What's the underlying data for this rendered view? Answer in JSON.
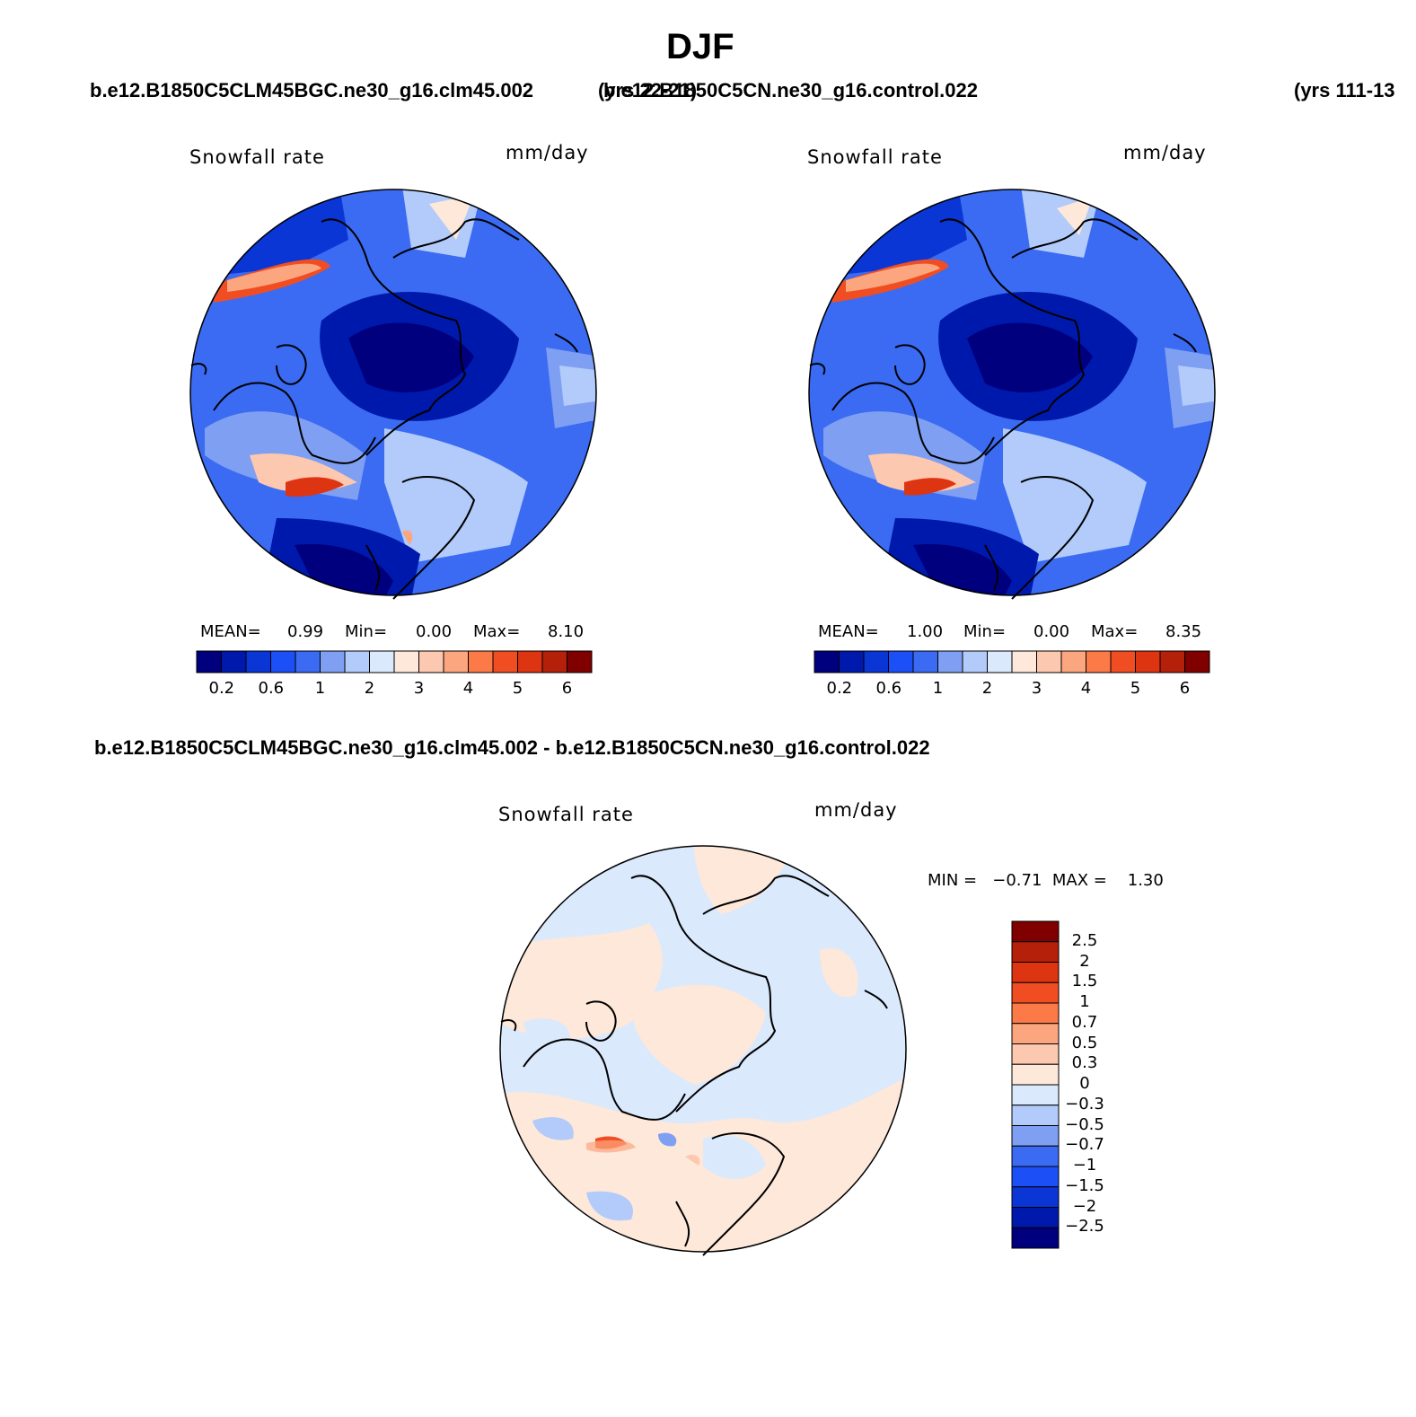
{
  "title": "DJF",
  "header": {
    "case_left": "b.e12.B1850C5CLM45BGC.ne30_g16.clm45.002",
    "years_left": "(yrs 22-21)",
    "case_right": "b.e12.B1850C5CN.ne30_g16.control.022",
    "years_right": "(yrs 111-13"
  },
  "panels": [
    {
      "variable": "Snowfall rate",
      "units": "mm/day",
      "stats": {
        "mean_label": "MEAN=",
        "mean": "0.99",
        "min_label": "Min=",
        "min": "0.00",
        "max_label": "Max=",
        "max": "8.10"
      }
    },
    {
      "variable": "Snowfall rate",
      "units": "mm/day",
      "stats": {
        "mean_label": "MEAN=",
        "mean": "1.00",
        "min_label": "Min=",
        "min": "0.00",
        "max_label": "Max=",
        "max": "8.35"
      }
    }
  ],
  "diff": {
    "title": "b.e12.B1850C5CLM45BGC.ne30_g16.clm45.002 - b.e12.B1850C5CN.ne30_g16.control.022",
    "variable": "Snowfall rate",
    "units": "mm/day",
    "minmax": "MIN =   −0.71  MAX =    1.30"
  },
  "colorbar_abs": {
    "colors": [
      "#00007f",
      "#0019ad",
      "#0a36d6",
      "#1c4ff5",
      "#3a6bf2",
      "#7f9ff2",
      "#b2cbfa",
      "#dbe9fd",
      "#fde8da",
      "#fdc8b0",
      "#fca67f",
      "#fc7a48",
      "#f04e22",
      "#dd3412",
      "#b5200a",
      "#800000"
    ],
    "tick_labels": [
      "0.2",
      "0.6",
      "1",
      "2",
      "3",
      "4",
      "5",
      "6"
    ]
  },
  "colorbar_diff": {
    "colors_top_to_bottom": [
      "#800000",
      "#b5200a",
      "#dd3412",
      "#f04e22",
      "#fc7a48",
      "#fca67f",
      "#fdc8b0",
      "#fde8da",
      "#dbe9fd",
      "#b2cbfa",
      "#7f9ff2",
      "#3a6bf2",
      "#1c4ff5",
      "#0a36d6",
      "#0019ad",
      "#00007f"
    ],
    "tick_labels": [
      "2.5",
      "2",
      "1.5",
      "1",
      "0.7",
      "0.5",
      "0.3",
      "0",
      "−0.3",
      "−0.5",
      "−0.7",
      "−1",
      "−1.5",
      "−2",
      "−2.5"
    ]
  }
}
